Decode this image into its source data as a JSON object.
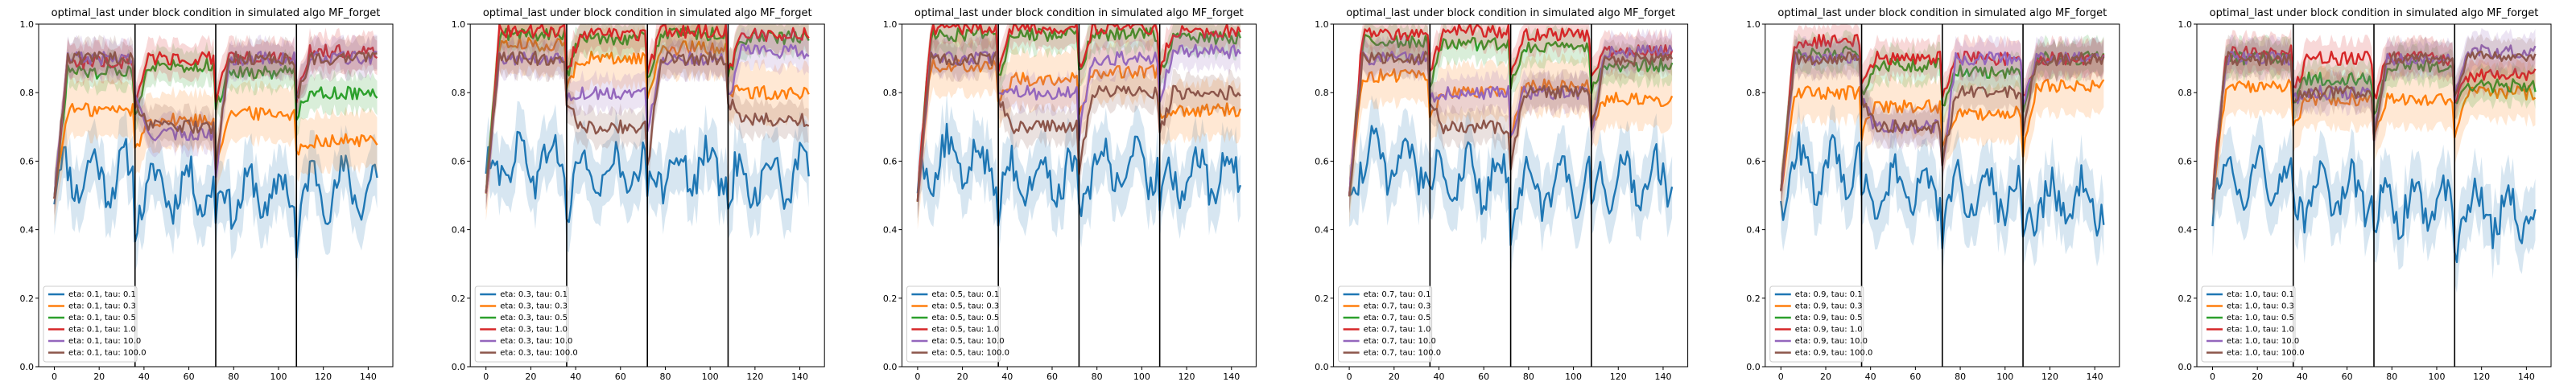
{
  "chart_data": [
    {
      "type": "line",
      "title": "optimal_last under block condition in simulated algo MF_forget",
      "xlabel": "",
      "ylabel": "",
      "xlim": [
        -7,
        151
      ],
      "ylim": [
        0.0,
        1.0
      ],
      "xticks": [
        0,
        20,
        40,
        60,
        80,
        100,
        120,
        140
      ],
      "yticks": [
        0.0,
        0.2,
        0.4,
        0.6,
        0.8,
        1.0
      ],
      "block_boundaries": [
        36,
        72,
        108
      ],
      "legend_position": "lower-left",
      "series": [
        {
          "name": "eta: 0.1, tau: 0.1",
          "color": "#1f77b4",
          "levels": [
            0.56,
            0.52,
            0.5,
            0.52
          ]
        },
        {
          "name": "eta: 0.1, tau: 0.3",
          "color": "#ff7f0e",
          "levels": [
            0.75,
            0.72,
            0.74,
            0.66
          ]
        },
        {
          "name": "eta: 0.1, tau: 0.5",
          "color": "#2ca02c",
          "levels": [
            0.86,
            0.88,
            0.86,
            0.8
          ]
        },
        {
          "name": "eta: 0.1, tau: 1.0",
          "color": "#d62728",
          "levels": [
            0.89,
            0.9,
            0.9,
            0.92
          ]
        },
        {
          "name": "eta: 0.1, tau: 10.0",
          "color": "#9467bd",
          "levels": [
            0.9,
            0.68,
            0.9,
            0.9
          ]
        },
        {
          "name": "eta: 0.1, tau: 100.0",
          "color": "#8c564b",
          "levels": [
            0.9,
            0.7,
            0.9,
            0.9
          ]
        }
      ]
    },
    {
      "type": "line",
      "title": "optimal_last under block condition in simulated algo MF_forget",
      "xlabel": "",
      "ylabel": "",
      "xlim": [
        -7,
        151
      ],
      "ylim": [
        0.0,
        1.0
      ],
      "xticks": [
        0,
        20,
        40,
        60,
        80,
        100,
        120,
        140
      ],
      "yticks": [
        0.0,
        0.2,
        0.4,
        0.6,
        0.8,
        1.0
      ],
      "block_boundaries": [
        36,
        72,
        108
      ],
      "legend_position": "lower-left",
      "series": [
        {
          "name": "eta: 0.3, tau: 0.1",
          "color": "#1f77b4",
          "levels": [
            0.6,
            0.56,
            0.58,
            0.55
          ]
        },
        {
          "name": "eta: 0.3, tau: 0.3",
          "color": "#ff7f0e",
          "levels": [
            0.94,
            0.9,
            0.93,
            0.8
          ]
        },
        {
          "name": "eta: 0.3, tau: 0.5",
          "color": "#2ca02c",
          "levels": [
            0.97,
            0.96,
            0.97,
            0.96
          ]
        },
        {
          "name": "eta: 0.3, tau: 1.0",
          "color": "#d62728",
          "levels": [
            0.98,
            0.97,
            0.98,
            0.97
          ]
        },
        {
          "name": "eta: 0.3, tau: 10.0",
          "color": "#9467bd",
          "levels": [
            0.9,
            0.8,
            0.9,
            0.92
          ]
        },
        {
          "name": "eta: 0.3, tau: 100.0",
          "color": "#8c564b",
          "levels": [
            0.9,
            0.7,
            0.9,
            0.72
          ]
        }
      ]
    },
    {
      "type": "line",
      "title": "optimal_last under block condition in simulated algo MF_forget",
      "xlabel": "",
      "ylabel": "",
      "xlim": [
        -7,
        151
      ],
      "ylim": [
        0.0,
        1.0
      ],
      "xticks": [
        0,
        20,
        40,
        60,
        80,
        100,
        120,
        140
      ],
      "yticks": [
        0.0,
        0.2,
        0.4,
        0.6,
        0.8,
        1.0
      ],
      "block_boundaries": [
        36,
        72,
        108
      ],
      "legend_position": "lower-left",
      "series": [
        {
          "name": "eta: 0.5, tau: 0.1",
          "color": "#1f77b4",
          "levels": [
            0.6,
            0.55,
            0.58,
            0.56
          ]
        },
        {
          "name": "eta: 0.5, tau: 0.3",
          "color": "#ff7f0e",
          "levels": [
            0.88,
            0.84,
            0.86,
            0.75
          ]
        },
        {
          "name": "eta: 0.5, tau: 0.5",
          "color": "#2ca02c",
          "levels": [
            0.97,
            0.97,
            0.97,
            0.96
          ]
        },
        {
          "name": "eta: 0.5, tau: 1.0",
          "color": "#d62728",
          "levels": [
            0.99,
            0.99,
            0.99,
            0.98
          ]
        },
        {
          "name": "eta: 0.5, tau: 10.0",
          "color": "#9467bd",
          "levels": [
            0.9,
            0.8,
            0.9,
            0.92
          ]
        },
        {
          "name": "eta: 0.5, tau: 100.0",
          "color": "#8c564b",
          "levels": [
            0.9,
            0.7,
            0.8,
            0.8
          ]
        }
      ]
    },
    {
      "type": "line",
      "title": "optimal_last under block condition in simulated algo MF_forget",
      "xlabel": "",
      "ylabel": "",
      "xlim": [
        -7,
        151
      ],
      "ylim": [
        0.0,
        1.0
      ],
      "xticks": [
        0,
        20,
        40,
        60,
        80,
        100,
        120,
        140
      ],
      "yticks": [
        0.0,
        0.2,
        0.4,
        0.6,
        0.8,
        1.0
      ],
      "block_boundaries": [
        36,
        72,
        108
      ],
      "legend_position": "lower-left",
      "series": [
        {
          "name": "eta: 0.7, tau: 0.1",
          "color": "#1f77b4",
          "levels": [
            0.6,
            0.55,
            0.52,
            0.55
          ]
        },
        {
          "name": "eta: 0.7, tau: 0.3",
          "color": "#ff7f0e",
          "levels": [
            0.85,
            0.8,
            0.82,
            0.78
          ]
        },
        {
          "name": "eta: 0.7, tau: 0.5",
          "color": "#2ca02c",
          "levels": [
            0.95,
            0.94,
            0.93,
            0.88
          ]
        },
        {
          "name": "eta: 0.7, tau: 1.0",
          "color": "#d62728",
          "levels": [
            0.97,
            0.98,
            0.97,
            0.92
          ]
        },
        {
          "name": "eta: 0.7, tau: 10.0",
          "color": "#9467bd",
          "levels": [
            0.9,
            0.8,
            0.8,
            0.92
          ]
        },
        {
          "name": "eta: 0.7, tau: 100.0",
          "color": "#8c564b",
          "levels": [
            0.9,
            0.7,
            0.8,
            0.9
          ]
        }
      ]
    },
    {
      "type": "line",
      "title": "optimal_last under block condition in simulated algo MF_forget",
      "xlabel": "",
      "ylabel": "",
      "xlim": [
        -7,
        151
      ],
      "ylim": [
        0.0,
        1.0
      ],
      "xticks": [
        0,
        20,
        40,
        60,
        80,
        100,
        120,
        140
      ],
      "yticks": [
        0.0,
        0.2,
        0.4,
        0.6,
        0.8,
        1.0
      ],
      "block_boundaries": [
        36,
        72,
        108
      ],
      "legend_position": "lower-left",
      "series": [
        {
          "name": "eta: 0.9, tau: 0.1",
          "color": "#1f77b4",
          "levels": [
            0.58,
            0.52,
            0.5,
            0.48
          ]
        },
        {
          "name": "eta: 0.9, tau: 0.3",
          "color": "#ff7f0e",
          "levels": [
            0.8,
            0.76,
            0.74,
            0.82
          ]
        },
        {
          "name": "eta: 0.9, tau: 0.5",
          "color": "#2ca02c",
          "levels": [
            0.92,
            0.88,
            0.86,
            0.9
          ]
        },
        {
          "name": "eta: 0.9, tau: 1.0",
          "color": "#d62728",
          "levels": [
            0.95,
            0.9,
            0.9,
            0.9
          ]
        },
        {
          "name": "eta: 0.9, tau: 10.0",
          "color": "#9467bd",
          "levels": [
            0.9,
            0.7,
            0.9,
            0.9
          ]
        },
        {
          "name": "eta: 0.9, tau: 100.0",
          "color": "#8c564b",
          "levels": [
            0.9,
            0.7,
            0.8,
            0.9
          ]
        }
      ]
    },
    {
      "type": "line",
      "title": "optimal_last under block condition in simulated algo MF_forget",
      "xlabel": "",
      "ylabel": "",
      "xlim": [
        -7,
        151
      ],
      "ylim": [
        0.0,
        1.0
      ],
      "xticks": [
        0,
        20,
        40,
        60,
        80,
        100,
        120,
        140
      ],
      "yticks": [
        0.0,
        0.2,
        0.4,
        0.6,
        0.8,
        1.0
      ],
      "block_boundaries": [
        36,
        72,
        108
      ],
      "legend_position": "lower-left",
      "series": [
        {
          "name": "eta: 1.0, tau: 0.1",
          "color": "#1f77b4",
          "levels": [
            0.55,
            0.5,
            0.47,
            0.45
          ]
        },
        {
          "name": "eta: 1.0, tau: 0.3",
          "color": "#ff7f0e",
          "levels": [
            0.82,
            0.78,
            0.78,
            0.8
          ]
        },
        {
          "name": "eta: 1.0, tau: 0.5",
          "color": "#2ca02c",
          "levels": [
            0.9,
            0.84,
            0.88,
            0.82
          ]
        },
        {
          "name": "eta: 1.0, tau: 1.0",
          "color": "#d62728",
          "levels": [
            0.92,
            0.9,
            0.9,
            0.85
          ]
        },
        {
          "name": "eta: 1.0, tau: 10.0",
          "color": "#9467bd",
          "levels": [
            0.9,
            0.8,
            0.9,
            0.92
          ]
        },
        {
          "name": "eta: 1.0, tau: 100.0",
          "color": "#8c564b",
          "levels": [
            0.9,
            0.8,
            0.9,
            0.9
          ]
        }
      ]
    }
  ]
}
